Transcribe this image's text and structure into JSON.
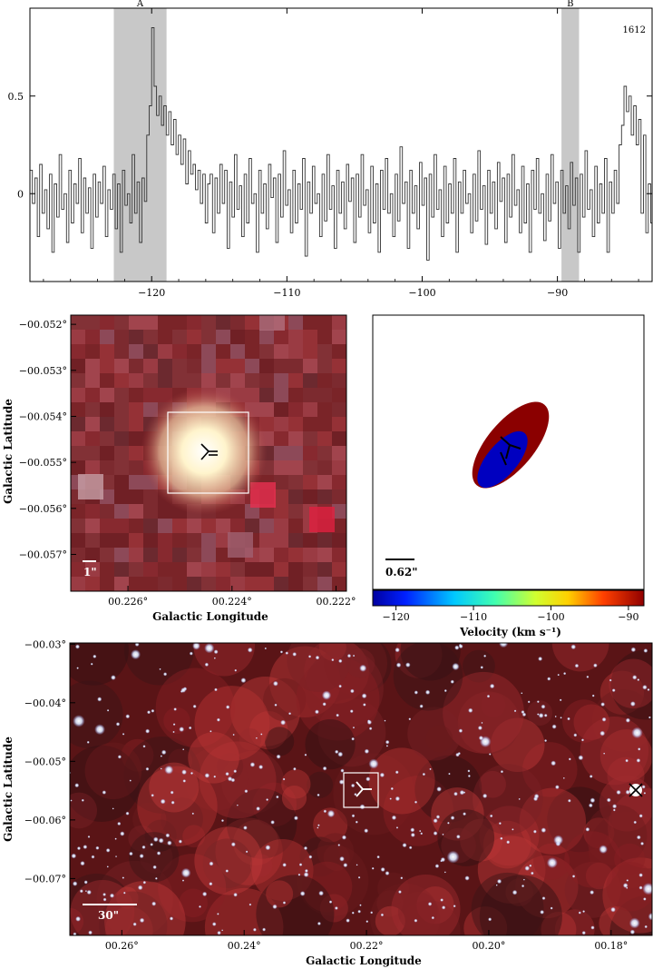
{
  "chart_data": [
    {
      "type": "line",
      "panel": "spectrum",
      "annotation": "1612",
      "xlim": [
        -129,
        -83
      ],
      "ylim": [
        -0.45,
        0.95
      ],
      "x_ticks": [
        -120,
        -110,
        -100,
        -90
      ],
      "y_ticks": [
        0.5,
        0
      ],
      "shaded_regions": [
        {
          "label": "A",
          "range": [
            -122.8,
            -118.9
          ]
        },
        {
          "label": "B",
          "range": [
            -89.7,
            -88.4
          ]
        }
      ],
      "series": [
        {
          "x_start": -129,
          "x_step": 0.18,
          "values": [
            0.12,
            -0.05,
            0.08,
            -0.22,
            0.15,
            -0.1,
            0.02,
            -0.18,
            0.1,
            -0.3,
            0.05,
            -0.12,
            0.2,
            -0.08,
            0.0,
            -0.25,
            0.12,
            -0.15,
            0.05,
            -0.05,
            0.18,
            -0.2,
            0.08,
            -0.1,
            0.03,
            -0.28,
            0.1,
            -0.12,
            0.06,
            -0.05,
            0.14,
            -0.22,
            0.02,
            -0.08,
            0.1,
            -0.18,
            0.05,
            -0.3,
            0.12,
            -0.06,
            0.0,
            -0.15,
            0.2,
            -0.1,
            0.06,
            -0.25,
            0.08,
            -0.04,
            0.3,
            0.45,
            0.85,
            0.55,
            0.4,
            0.5,
            0.35,
            0.45,
            0.3,
            0.42,
            0.25,
            0.38,
            0.2,
            0.3,
            0.15,
            0.28,
            0.05,
            0.22,
            0.1,
            0.15,
            0.02,
            0.12,
            -0.05,
            0.1,
            -0.15,
            0.05,
            0.1,
            -0.2,
            0.08,
            -0.1,
            0.15,
            -0.05,
            0.12,
            -0.28,
            0.06,
            -0.12,
            0.2,
            -0.08,
            0.04,
            -0.22,
            0.1,
            -0.15,
            0.18,
            -0.05,
            0.0,
            -0.3,
            0.12,
            -0.1,
            0.05,
            -0.18,
            0.15,
            -0.02,
            0.08,
            -0.25,
            0.1,
            -0.12,
            0.22,
            -0.06,
            0.02,
            -0.2,
            0.12,
            -0.15,
            0.05,
            -0.08,
            0.18,
            -0.32,
            0.06,
            -0.1,
            0.14,
            -0.05,
            0.0,
            -0.22,
            0.1,
            -0.14,
            0.2,
            -0.08,
            0.04,
            -0.28,
            0.12,
            -0.1,
            0.06,
            -0.18,
            0.15,
            -0.04,
            0.08,
            -0.25,
            0.1,
            -0.12,
            0.2,
            -0.06,
            0.02,
            -0.2,
            0.14,
            -0.15,
            0.05,
            -0.3,
            0.12,
            -0.08,
            0.18,
            -0.1,
            0.0,
            -0.22,
            0.1,
            -0.14,
            0.24,
            -0.05,
            0.06,
            -0.28,
            0.12,
            -0.1,
            0.04,
            -0.18,
            0.16,
            -0.06,
            0.08,
            -0.34,
            0.1,
            -0.12,
            0.2,
            -0.08,
            0.02,
            -0.22,
            0.14,
            -0.15,
            0.05,
            -0.1,
            0.18,
            -0.3,
            0.06,
            -0.1,
            0.12,
            -0.05,
            0.0,
            -0.2,
            0.1,
            -0.14,
            0.22,
            -0.08,
            0.04,
            -0.26,
            0.12,
            -0.1,
            0.06,
            -0.18,
            0.16,
            -0.04,
            0.08,
            -0.25,
            0.1,
            -0.12,
            0.2,
            -0.06,
            0.02,
            -0.2,
            0.14,
            -0.15,
            0.05,
            -0.3,
            0.12,
            -0.08,
            0.18,
            -0.1,
            0.0,
            -0.24,
            0.1,
            -0.14,
            0.2,
            -0.05,
            0.06,
            -0.28,
            0.12,
            -0.1,
            0.04,
            -0.18,
            0.16,
            -0.06,
            0.08,
            -0.3,
            0.1,
            -0.12,
            0.22,
            -0.08,
            0.02,
            -0.22,
            0.14,
            -0.15,
            0.05,
            -0.1,
            0.18,
            -0.3,
            0.06,
            -0.1,
            0.12,
            -0.05,
            0.25,
            0.35,
            0.55,
            0.42,
            0.5,
            0.3,
            0.45,
            0.25,
            0.38,
            -0.1,
            0.3,
            -0.2,
            0.05,
            -0.15,
            0.12,
            -0.25,
            0.08,
            -0.1,
            0.2,
            -0.05,
            0.0,
            -0.22,
            0.1,
            -0.14,
            0.18,
            -0.08,
            0.04,
            -0.2,
            0.12,
            -0.1,
            0.06
          ]
        }
      ]
    },
    {
      "type": "heatmap",
      "panel": "zoom-image",
      "xlabel": "Galactic Longitude",
      "ylabel": "Galactic Latitude",
      "x_ticks": [
        "00.226°",
        "00.224°",
        "00.222°"
      ],
      "y_ticks": [
        "−00.052°",
        "−00.053°",
        "−00.054°",
        "−00.055°",
        "−00.056°",
        "−00.057°"
      ],
      "xlim": [
        0.2271,
        0.2218
      ],
      "ylim": [
        -0.0578,
        -0.0518
      ],
      "scale_bar": "1\""
    },
    {
      "type": "scatter",
      "panel": "velocity-map",
      "scale_bar": "0.62\"",
      "colorbar_label": "Velocity (km s⁻¹)",
      "colorbar_ticks": [
        -120,
        -110,
        -100,
        -90
      ],
      "colorbar_range": [
        -123,
        -88
      ],
      "components": [
        {
          "name": "red",
          "color": "#8b0000"
        },
        {
          "name": "blue",
          "color": "#0000c0"
        }
      ]
    },
    {
      "type": "heatmap",
      "panel": "wide-image",
      "xlabel": "Galactic Longitude",
      "ylabel": "Galactic Latitude",
      "x_ticks": [
        "00.26°",
        "00.24°",
        "00.22°",
        "00.20°",
        "00.18°"
      ],
      "y_ticks": [
        "−00.03°",
        "−00.04°",
        "−00.05°",
        "−00.06°",
        "−00.07°"
      ],
      "xlim": [
        0.2685,
        0.1733
      ],
      "ylim": [
        -0.0797,
        -0.0298
      ],
      "scale_bar": "30\""
    }
  ]
}
